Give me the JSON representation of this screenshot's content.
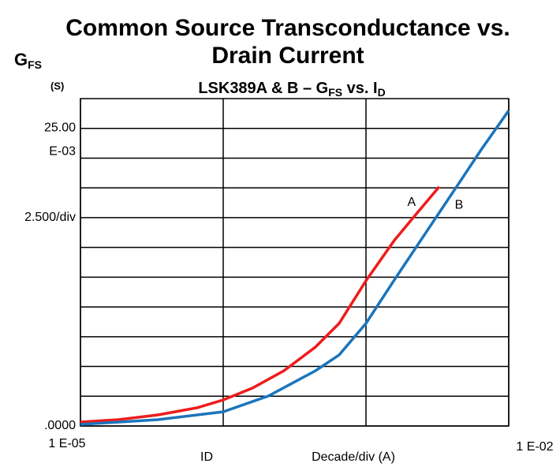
{
  "chart_data": {
    "type": "line",
    "title": [
      "Common Source Transconductance vs.",
      "Drain Current"
    ],
    "subtitle": [
      "LSK389A & B – G",
      "FS",
      " vs. I",
      "D"
    ],
    "ylabel": [
      "G",
      "FS"
    ],
    "yunit": "(S)",
    "xlabel": "ID",
    "xscale_label": "Decade/div (A)",
    "yscale_label": "2.500/div",
    "xscale": "log",
    "grid": true,
    "xlim": [
      1e-05,
      0.01
    ],
    "xticks": [
      {
        "value": 1e-05,
        "label": "1 E-05"
      },
      {
        "value": 0.01,
        "label": "1 E-02"
      }
    ],
    "xgrid": [
      0.0001,
      0.001
    ],
    "ylim": [
      0,
      0.0275
    ],
    "yticks": [
      {
        "value": 0,
        "label": ".0000"
      },
      {
        "value": 0.025,
        "label": "25.00 E-03"
      }
    ],
    "ygrid": [
      0.0025,
      0.005,
      0.0075,
      0.01,
      0.0125,
      0.015,
      0.0175,
      0.02,
      0.0225
    ],
    "series": [
      {
        "name": "A",
        "color": "#ee1c1c",
        "x": [
          1e-05,
          1.84e-05,
          3.48e-05,
          6.57e-05,
          0.0001,
          0.00016,
          0.000266,
          0.000443,
          0.000649,
          0.001,
          0.00158,
          0.00232,
          0.00326
        ],
        "values": [
          0.00033,
          0.00053,
          0.00093,
          0.00153,
          0.00219,
          0.00318,
          0.00464,
          0.00663,
          0.00862,
          0.0122,
          0.0156,
          0.018,
          0.0201
        ]
      },
      {
        "name": "B",
        "color": "#1b75bc",
        "x": [
          1e-05,
          3.48e-05,
          0.0001,
          0.000207,
          0.000443,
          0.000649,
          0.001,
          0.00158,
          0.00263,
          0.00437,
          0.00641,
          0.01
        ],
        "values": [
          0.00013,
          0.00053,
          0.00119,
          0.00252,
          0.00464,
          0.00597,
          0.00862,
          0.01227,
          0.01625,
          0.0202,
          0.0232,
          0.0265
        ]
      }
    ]
  }
}
